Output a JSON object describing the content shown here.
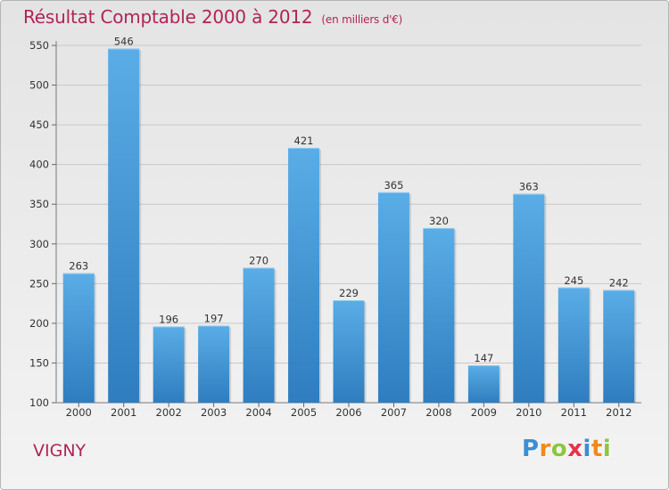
{
  "header": {
    "title": "Résultat Comptable 2000 à 2012",
    "subtitle": "(en milliers d'€)"
  },
  "footer": {
    "location": "VIGNY",
    "logo_text": "Proxiti",
    "logo_letters": [
      {
        "char": "P",
        "color": "#3a8fd6"
      },
      {
        "char": "r",
        "color": "#f08a1c"
      },
      {
        "char": "o",
        "color": "#8cc63f"
      },
      {
        "char": "x",
        "color": "#e8334a"
      },
      {
        "char": "i",
        "color": "#3a8fd6"
      },
      {
        "char": "t",
        "color": "#f08a1c"
      },
      {
        "char": "i",
        "color": "#8cc63f"
      }
    ]
  },
  "colors": {
    "accent": "#b02458",
    "bar_top": "#5aade6",
    "bar_bottom": "#2f7dbf"
  },
  "chart_data": {
    "type": "bar",
    "title": "Résultat Comptable 2000 à 2012",
    "subtitle": "(en milliers d'€)",
    "categories": [
      "2000",
      "2001",
      "2002",
      "2003",
      "2004",
      "2005",
      "2006",
      "2007",
      "2008",
      "2009",
      "2010",
      "2011",
      "2012"
    ],
    "values": [
      263,
      546,
      196,
      197,
      270,
      421,
      229,
      365,
      320,
      147,
      363,
      245,
      242
    ],
    "ylim": [
      100,
      550
    ],
    "yticks": [
      100,
      150,
      200,
      250,
      300,
      350,
      400,
      450,
      500,
      550
    ],
    "grid": true,
    "xlabel": "",
    "ylabel": ""
  }
}
